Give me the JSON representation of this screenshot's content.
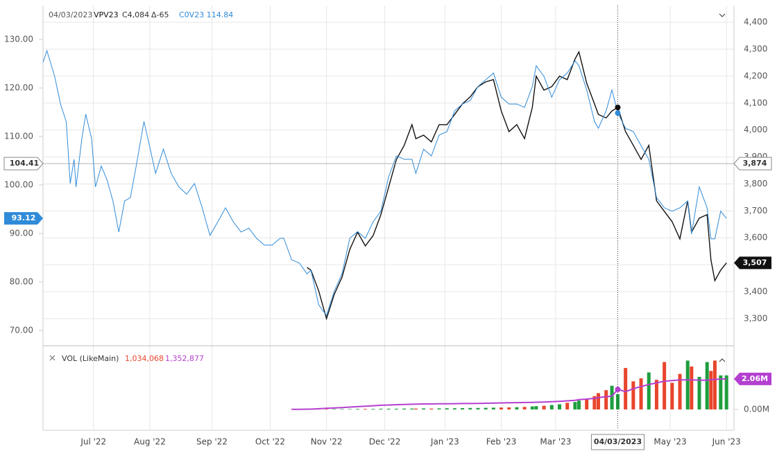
{
  "chart_data": {
    "type": "line",
    "header": {
      "date": "04/03/2023",
      "symbol": "VPV23",
      "close": "C4,084",
      "change": "Δ-65",
      "compare": "C0V23 114.84"
    },
    "x": [
      0,
      2,
      6,
      9,
      12,
      14,
      16,
      17,
      20,
      22,
      25,
      27,
      30,
      33,
      36,
      39,
      42,
      45,
      48,
      52,
      54,
      58,
      62,
      66,
      70,
      74,
      78,
      82,
      84,
      86,
      90,
      94,
      98,
      102,
      106,
      110,
      114,
      118,
      122,
      124,
      128,
      132,
      136,
      138,
      142,
      146,
      150,
      154,
      158,
      162,
      166,
      170,
      174,
      178,
      182,
      186,
      190,
      192,
      196,
      200,
      204,
      208,
      212,
      216,
      220,
      224,
      228,
      232,
      236,
      240,
      244,
      248,
      252,
      254,
      258,
      262,
      266,
      270,
      274,
      276,
      280,
      284,
      286,
      290,
      293,
      296,
      300,
      304,
      308,
      312,
      316,
      320,
      324,
      328,
      332,
      334,
      338,
      342,
      344,
      346,
      349,
      352
    ],
    "xlim": [
      0,
      353
    ],
    "xticks": [
      {
        "value": 26,
        "label": "Jul '22"
      },
      {
        "value": 55,
        "label": "Aug '22"
      },
      {
        "value": 87,
        "label": "Sep '22"
      },
      {
        "value": 117,
        "label": "Oct '22"
      },
      {
        "value": 146,
        "label": "Nov '22"
      },
      {
        "value": 176,
        "label": "Dec '22"
      },
      {
        "value": 207,
        "label": "Jan '23"
      },
      {
        "value": 236,
        "label": "Feb '23"
      },
      {
        "value": 264,
        "label": "Mar '23"
      },
      {
        "value": 323,
        "label": "May '23"
      },
      {
        "value": 352,
        "label": "Jun '23"
      }
    ],
    "ylim": [
      67,
      137
    ],
    "yticks": [
      {
        "value": 70,
        "label": "70.00"
      },
      {
        "value": 80,
        "label": "80.00"
      },
      {
        "value": 90,
        "label": "90.00"
      },
      {
        "value": 100,
        "label": "100.00"
      },
      {
        "value": 110,
        "label": "110.00"
      },
      {
        "value": 120,
        "label": "120.00"
      },
      {
        "value": 130,
        "label": "130.00"
      }
    ],
    "y2lim": [
      3202,
      4462
    ],
    "y2ticks": [
      {
        "value": 3300,
        "label": "3,300"
      },
      {
        "value": 3400,
        "label": "3,400"
      },
      {
        "value": 3500,
        "label": "3,500"
      },
      {
        "value": 3600,
        "label": "3,600"
      },
      {
        "value": 3700,
        "label": "3,700"
      },
      {
        "value": 3800,
        "label": "3,800"
      },
      {
        "value": 3900,
        "label": "3,900"
      },
      {
        "value": 4000,
        "label": "4,000"
      },
      {
        "value": 4100,
        "label": "4,100"
      },
      {
        "value": 4200,
        "label": "4,200"
      },
      {
        "value": 4300,
        "label": "4,300"
      },
      {
        "value": 4400,
        "label": "4,400"
      }
    ],
    "grid": true,
    "series": [
      {
        "name": "C0V23",
        "color": "#2f8bd8",
        "values": [
          125.3,
          127.7,
          122.4,
          116.7,
          113,
          100.3,
          105.3,
          99.6,
          109.6,
          114.6,
          109.6,
          99.6,
          103.9,
          101,
          96.7,
          90.3,
          96.7,
          97.4,
          103.9,
          113.1,
          109.6,
          102.4,
          107.4,
          102.4,
          99.6,
          98.1,
          100.3,
          95.3,
          92.4,
          89.6,
          92.4,
          95.3,
          92.4,
          90.3,
          91.1,
          89,
          87.6,
          87.6,
          89,
          89,
          84.6,
          83.9,
          81.7,
          82.4,
          75.3,
          73.1,
          78.1,
          81.7,
          89,
          90.4,
          89,
          92.4,
          94.6,
          101.7,
          106,
          105.3,
          105.3,
          102.4,
          107.4,
          106,
          110.3,
          111,
          115.3,
          116.7,
          117.4,
          120.3,
          121.7,
          123.1,
          118.1,
          116.7,
          116.7,
          116,
          120.3,
          124.6,
          122.4,
          118.1,
          121.7,
          123.1,
          125.6,
          124.6,
          119.6,
          113.1,
          111.7,
          115.3,
          119.6,
          114.84,
          111.7,
          111,
          108.1,
          105.3,
          97.4,
          95.3,
          94.6,
          95.3,
          96.7,
          89.9,
          99.6,
          95.3,
          88.9,
          88.9,
          94.6,
          93.12
        ]
      },
      {
        "name": "VPV23",
        "color": "#111111",
        "axis": "y2",
        "last_label": "3,507",
        "values": [
          null,
          null,
          null,
          null,
          null,
          null,
          null,
          null,
          null,
          null,
          null,
          null,
          null,
          null,
          null,
          null,
          null,
          null,
          null,
          null,
          null,
          null,
          null,
          null,
          null,
          null,
          null,
          null,
          null,
          null,
          null,
          null,
          null,
          null,
          null,
          null,
          null,
          null,
          null,
          null,
          null,
          null,
          3490,
          3480,
          3403,
          3300,
          3390,
          3454,
          3557,
          3621,
          3570,
          3608,
          3686,
          3788,
          3891,
          3943,
          4020,
          3968,
          3981,
          3956,
          4020,
          4020,
          4058,
          4097,
          4123,
          4161,
          4179,
          4187,
          4071,
          3994,
          4020,
          3968,
          4084,
          4200,
          4148,
          4161,
          4200,
          4187,
          4264,
          4290,
          4174,
          4097,
          4058,
          4045,
          4071,
          4084,
          3994,
          3943,
          3891,
          3943,
          3737,
          3698,
          3660,
          3596,
          3737,
          3621,
          3673,
          3686,
          3518,
          3441,
          3480,
          3507
        ]
      }
    ],
    "crosshair": {
      "x": 296,
      "x_label": "04/03/2023",
      "y": 104.41,
      "y2_label": "3,874",
      "index": 85
    },
    "volume": {
      "title": "VOL (LikeMain)",
      "vol_label": "1,034,068",
      "ma_label": "1,352,877",
      "ylim": [
        -1.36,
        4.02
      ],
      "yticks": [
        {
          "value": 0,
          "label": "0.00M"
        }
      ],
      "up_color": "#1e9e3e",
      "down_color": "#e8452c",
      "values": [
        null,
        null,
        null,
        null,
        null,
        null,
        null,
        null,
        null,
        null,
        null,
        null,
        null,
        null,
        null,
        null,
        null,
        null,
        null,
        null,
        null,
        null,
        null,
        null,
        null,
        null,
        null,
        null,
        null,
        null,
        null,
        null,
        null,
        null,
        null,
        null,
        null,
        null,
        null,
        null,
        0.01,
        0.01,
        0.02,
        0.02,
        0.02,
        0.03,
        0.03,
        0.03,
        0.03,
        0.04,
        0.04,
        0.04,
        0.05,
        0.05,
        0.05,
        0.06,
        0.06,
        0.06,
        0.07,
        0.06,
        0.07,
        0.08,
        0.08,
        0.09,
        0.1,
        0.1,
        0.11,
        0.12,
        0.13,
        0.14,
        0.15,
        0.17,
        0.2,
        0.22,
        0.25,
        0.3,
        0.35,
        0.45,
        0.5,
        0.6,
        0.7,
        0.9,
        1.1,
        1.3,
        1.6,
        1.034068,
        2.8,
        1.9,
        2.1,
        2.5,
        2.0,
        3.2,
        1.8,
        2.4,
        3.3,
        2.9,
        2.2,
        3.2,
        2.6,
        3.3,
        2.3,
        2.3
      ],
      "ma": {
        "color": "#b43fd0",
        "last_label": "2.06M",
        "values": [
          null,
          null,
          null,
          null,
          null,
          null,
          null,
          null,
          null,
          null,
          null,
          null,
          null,
          null,
          null,
          null,
          null,
          null,
          null,
          null,
          null,
          null,
          null,
          null,
          null,
          null,
          null,
          null,
          null,
          null,
          null,
          null,
          null,
          null,
          null,
          null,
          null,
          null,
          null,
          null,
          0.01,
          0.01,
          0.02,
          0.02,
          0.05,
          0.08,
          0.1,
          0.13,
          0.16,
          0.19,
          0.22,
          0.25,
          0.28,
          0.3,
          0.32,
          0.34,
          0.35,
          0.36,
          0.37,
          0.37,
          0.38,
          0.38,
          0.39,
          0.4,
          0.4,
          0.41,
          0.42,
          0.43,
          0.44,
          0.45,
          0.46,
          0.47,
          0.48,
          0.49,
          0.5,
          0.52,
          0.55,
          0.58,
          0.62,
          0.66,
          0.7,
          0.75,
          0.8,
          0.86,
          0.9,
          1.352877,
          1.2,
          1.4,
          1.55,
          1.68,
          1.8,
          1.9,
          1.95,
          2.0,
          2.0,
          2.0,
          1.98,
          1.97,
          2.0,
          2.03,
          2.05,
          2.06
        ]
      }
    }
  }
}
